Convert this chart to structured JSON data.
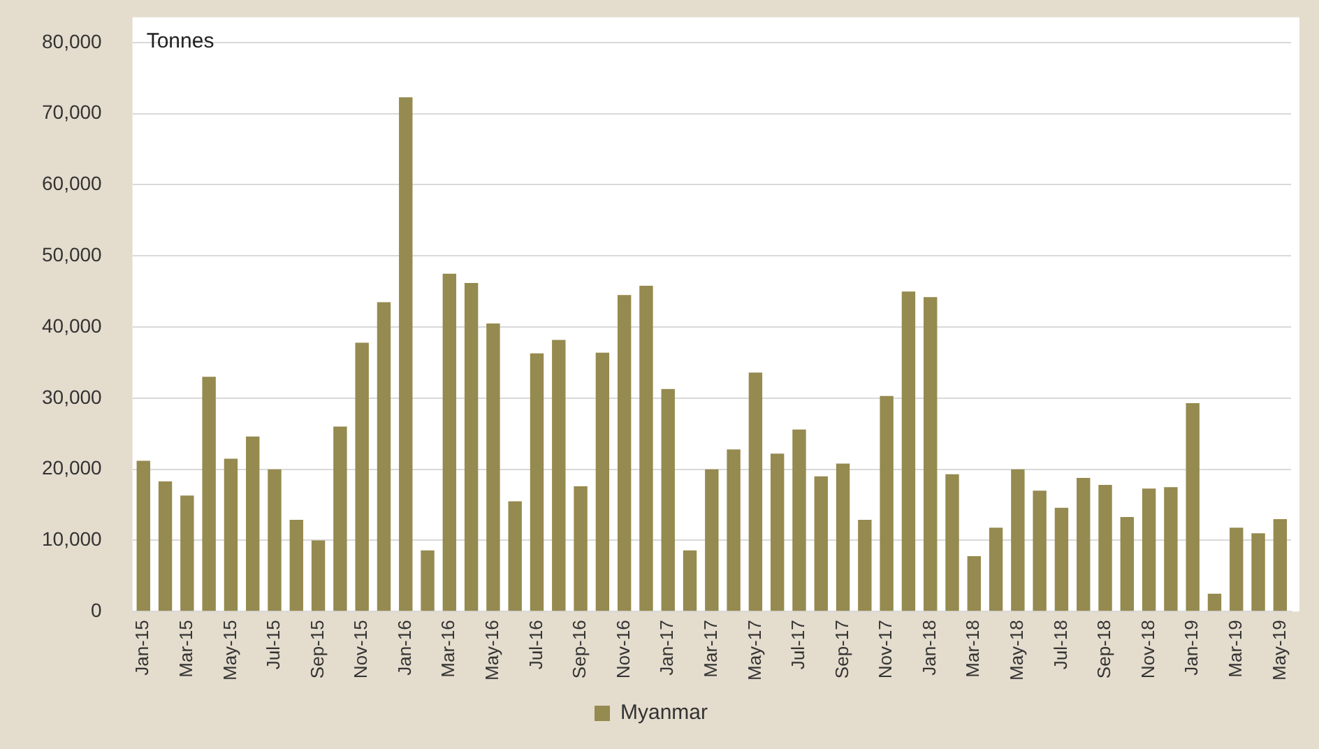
{
  "chart_data": {
    "type": "bar",
    "ylabel": "Tonnes",
    "categories": [
      "Jan-15",
      null,
      "Mar-15",
      null,
      "May-15",
      null,
      "Jul-15",
      null,
      "Sep-15",
      null,
      "Nov-15",
      null,
      "Jan-16",
      null,
      "Mar-16",
      null,
      "May-16",
      null,
      "Jul-16",
      null,
      "Sep-16",
      null,
      "Nov-16",
      null,
      "Jan-17",
      null,
      "Mar-17",
      null,
      "May-17",
      null,
      "Jul-17",
      null,
      "Sep-17",
      null,
      "Nov-17",
      null,
      "Jan-18",
      null,
      "Mar-18",
      null,
      "May-18",
      null,
      "Jul-18",
      null,
      "Sep-18",
      null,
      "Nov-18",
      null,
      "Jan-19",
      null,
      "Mar-19",
      null,
      "May-19"
    ],
    "series": [
      {
        "name": "Myanmar",
        "color": "#958a4f",
        "values": [
          21200,
          18300,
          16300,
          33000,
          21500,
          24600,
          20000,
          12900,
          10000,
          26000,
          37800,
          43500,
          72300,
          8600,
          47500,
          46200,
          40500,
          15500,
          36300,
          38200,
          17600,
          36400,
          44500,
          45800,
          31300,
          8600,
          20000,
          22800,
          33600,
          22200,
          25600,
          19000,
          20800,
          12900,
          30300,
          45000,
          44200,
          19300,
          7800,
          11800,
          20000,
          17000,
          14600,
          18800,
          17800,
          13300,
          17300,
          17500,
          29300,
          2500,
          11800,
          11000,
          13000
        ]
      }
    ],
    "ylim": [
      0,
      80000
    ],
    "yticks": [
      {
        "value": 0,
        "label": "0"
      },
      {
        "value": 10000,
        "label": "10,000"
      },
      {
        "value": 20000,
        "label": "20,000"
      },
      {
        "value": 30000,
        "label": "30,000"
      },
      {
        "value": 40000,
        "label": "40,000"
      },
      {
        "value": 50000,
        "label": "50,000"
      },
      {
        "value": 60000,
        "label": "60,000"
      },
      {
        "value": 70000,
        "label": "70,000"
      },
      {
        "value": 80000,
        "label": "80,000"
      }
    ],
    "grid": "y",
    "legend": "bottom"
  }
}
